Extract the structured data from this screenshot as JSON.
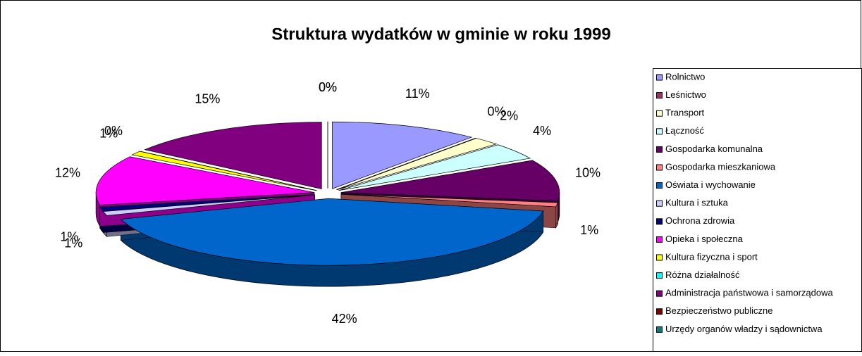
{
  "chart_data": {
    "type": "pie",
    "title": "Struktura wydatków w gminie w roku 1999",
    "categories": [
      "Rolnictwo",
      "Leśnictwo",
      "Transport",
      "Łączność",
      "Gospodarka komunalna",
      "Gospodarka mieszkaniowa",
      "Oświata i wychowanie",
      "Kultura i sztuka",
      "Ochrona zdrowia",
      "Opieka i społeczna",
      "Kultura fizyczna i sport",
      "Różna działalność",
      "Administracja państwowa i samorządowa",
      "Bezpieczeństwo publiczne",
      "Urzędy organów władzy i sądownictwa"
    ],
    "values": [
      11,
      0,
      2,
      4,
      10,
      1,
      42,
      1,
      1,
      12,
      1,
      0,
      15,
      0,
      0
    ],
    "value_labels": [
      "11%",
      "0%",
      "2%",
      "4%",
      "10%",
      "1%",
      "42%",
      "1%",
      "1%",
      "12%",
      "1%",
      "0%",
      "15%",
      "0%",
      "0%"
    ],
    "colors": [
      "#9999ff",
      "#993366",
      "#ffffcc",
      "#ccffff",
      "#660066",
      "#ff8080",
      "#0066cc",
      "#ccccff",
      "#000080",
      "#ff00ff",
      "#ffff00",
      "#00ffff",
      "#800080",
      "#800000",
      "#008080"
    ],
    "legend": "right"
  }
}
